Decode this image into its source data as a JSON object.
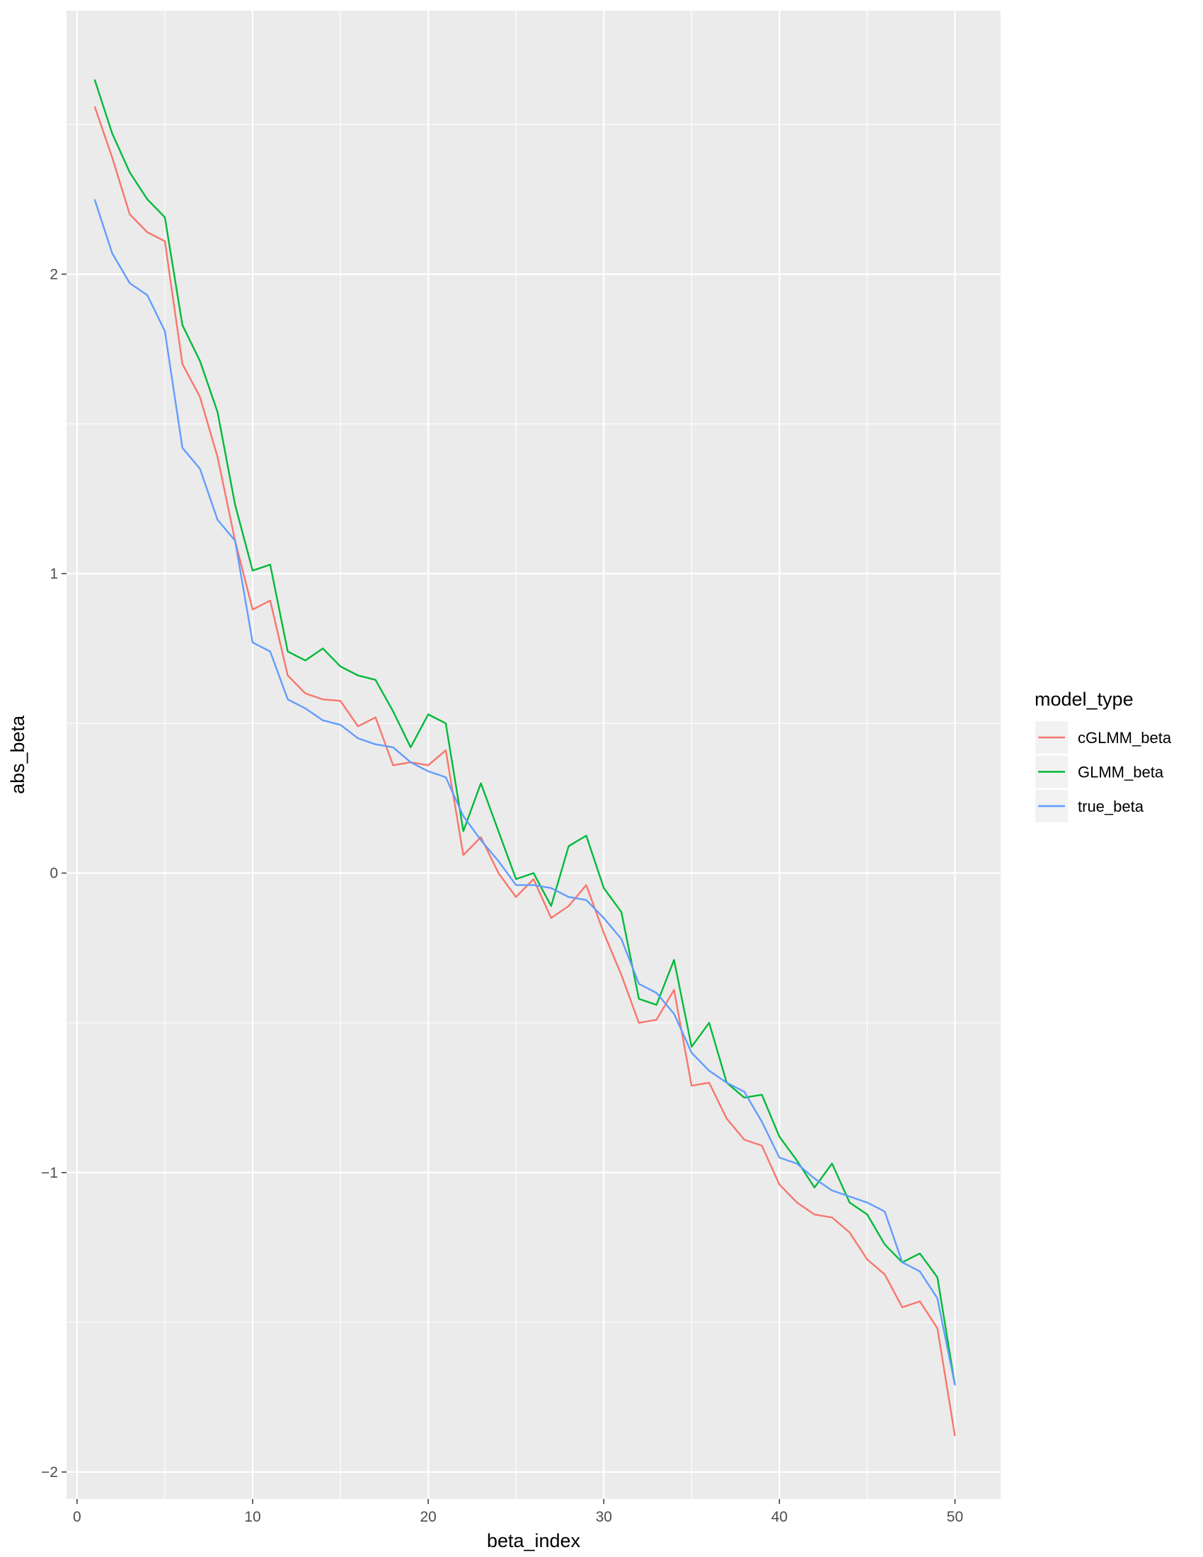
{
  "chart_data": {
    "type": "line",
    "title": "",
    "xlabel": "beta_index",
    "ylabel": "abs_beta",
    "xlim": [
      -0.6,
      52.6
    ],
    "ylim": [
      -2.09,
      2.88
    ],
    "x_ticks": [
      0,
      10,
      20,
      30,
      40,
      50
    ],
    "x_tick_labels": [
      "0",
      "10",
      "20",
      "30",
      "40",
      "50"
    ],
    "x_minor": [
      5,
      15,
      25,
      35,
      45
    ],
    "y_ticks": [
      -2,
      -1,
      0,
      1,
      2
    ],
    "y_tick_labels": [
      "−2",
      "−1",
      "0",
      "1",
      "2"
    ],
    "y_minor": [
      -1.5,
      -0.5,
      0.5,
      1.5,
      2.5
    ],
    "grid": true,
    "legend": {
      "title": "model_type",
      "position": "right"
    },
    "x": [
      1,
      2,
      3,
      4,
      5,
      6,
      7,
      8,
      9,
      10,
      11,
      12,
      13,
      14,
      15,
      16,
      17,
      18,
      19,
      20,
      21,
      22,
      23,
      24,
      25,
      26,
      27,
      28,
      29,
      30,
      31,
      32,
      33,
      34,
      35,
      36,
      37,
      38,
      39,
      40,
      41,
      42,
      43,
      44,
      45,
      46,
      47,
      48,
      49,
      50
    ],
    "series": [
      {
        "name": "cGLMM_beta",
        "color": "#F8766D",
        "values": [
          2.56,
          2.39,
          2.2,
          2.14,
          2.11,
          1.7,
          1.59,
          1.39,
          1.11,
          0.88,
          0.91,
          0.66,
          0.6,
          0.58,
          0.575,
          0.49,
          0.52,
          0.36,
          0.37,
          0.36,
          0.41,
          0.06,
          0.12,
          0.0,
          -0.08,
          -0.02,
          -0.15,
          -0.11,
          -0.04,
          -0.2,
          -0.34,
          -0.5,
          -0.49,
          -0.39,
          -0.71,
          -0.7,
          -0.82,
          -0.89,
          -0.91,
          -1.04,
          -1.1,
          -1.14,
          -1.15,
          -1.2,
          -1.29,
          -1.34,
          -1.45,
          -1.43,
          -1.52,
          -1.88
        ]
      },
      {
        "name": "GLMM_beta",
        "color": "#00BA38",
        "values": [
          2.65,
          2.47,
          2.34,
          2.25,
          2.19,
          1.83,
          1.71,
          1.54,
          1.23,
          1.01,
          1.03,
          0.74,
          0.71,
          0.75,
          0.69,
          0.66,
          0.645,
          0.54,
          0.42,
          0.53,
          0.5,
          0.14,
          0.3,
          0.14,
          -0.02,
          0.0,
          -0.11,
          0.09,
          0.125,
          -0.05,
          -0.13,
          -0.42,
          -0.44,
          -0.29,
          -0.58,
          -0.5,
          -0.7,
          -0.75,
          -0.74,
          -0.88,
          -0.96,
          -1.05,
          -0.97,
          -1.1,
          -1.14,
          -1.24,
          -1.3,
          -1.27,
          -1.35,
          -1.71
        ]
      },
      {
        "name": "true_beta",
        "color": "#619CFF",
        "values": [
          2.25,
          2.07,
          1.97,
          1.93,
          1.81,
          1.42,
          1.35,
          1.18,
          1.11,
          0.77,
          0.74,
          0.58,
          0.55,
          0.51,
          0.495,
          0.45,
          0.43,
          0.42,
          0.37,
          0.34,
          0.32,
          0.19,
          0.11,
          0.04,
          -0.04,
          -0.04,
          -0.05,
          -0.08,
          -0.09,
          -0.15,
          -0.22,
          -0.37,
          -0.4,
          -0.47,
          -0.6,
          -0.66,
          -0.7,
          -0.73,
          -0.83,
          -0.95,
          -0.97,
          -1.02,
          -1.06,
          -1.08,
          -1.1,
          -1.13,
          -1.3,
          -1.33,
          -1.42,
          -1.71
        ]
      }
    ]
  }
}
